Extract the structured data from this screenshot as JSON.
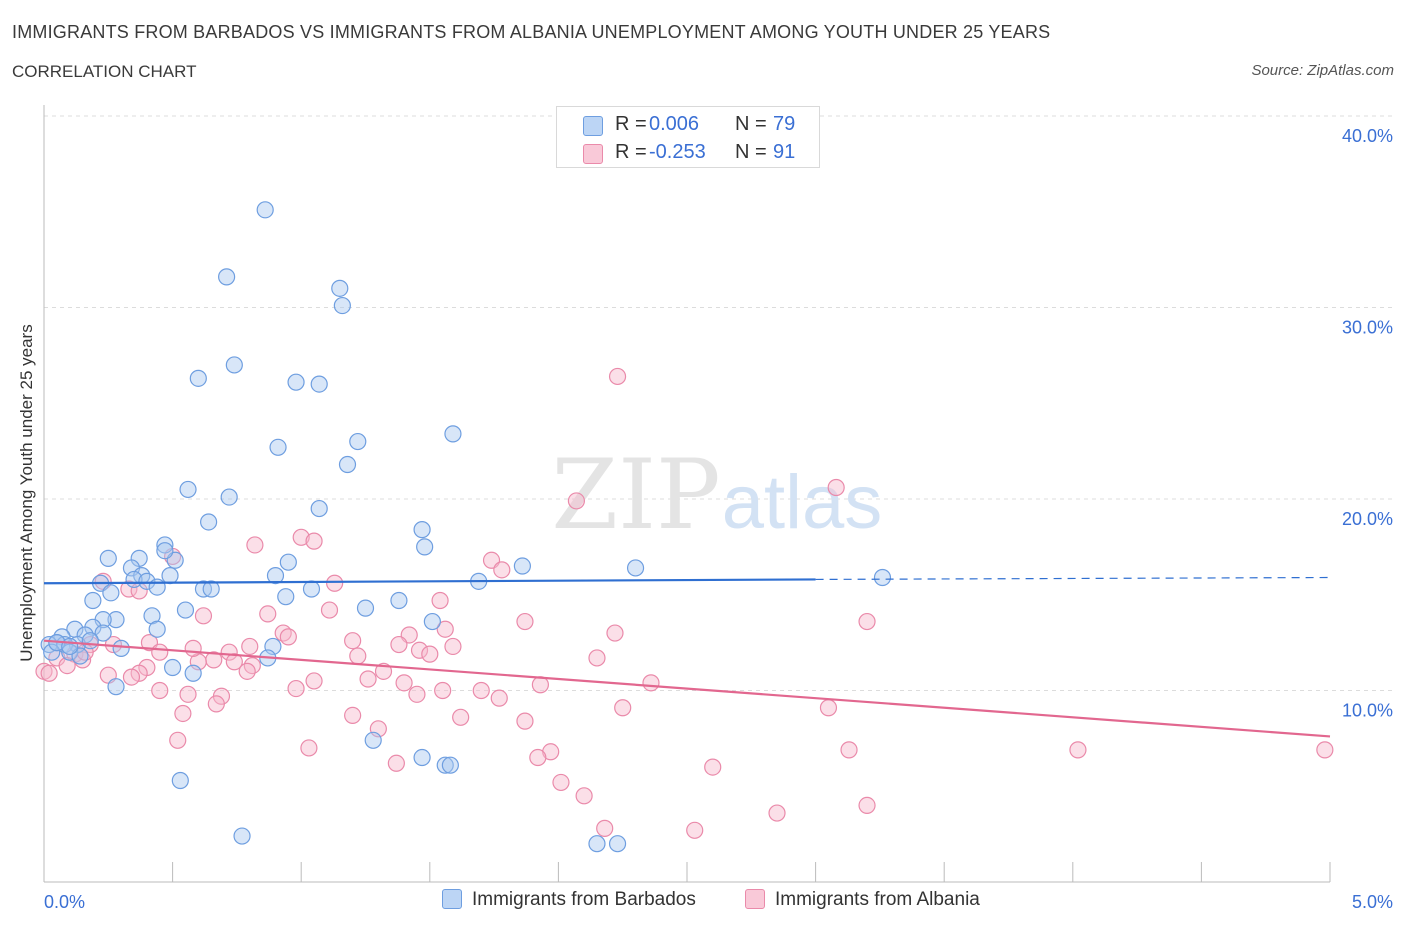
{
  "header": {
    "title": "IMMIGRANTS FROM BARBADOS VS IMMIGRANTS FROM ALBANIA UNEMPLOYMENT AMONG YOUTH UNDER 25 YEARS",
    "subtitle": "CORRELATION CHART",
    "source": "Source: ZipAtlas.com"
  },
  "watermark": {
    "zip": "ZIP",
    "atlas": "atlas"
  },
  "stats_legend": {
    "r_label": "R =",
    "n_label": "N =",
    "rows": [
      {
        "r": "0.006",
        "n": "79"
      },
      {
        "r": "-0.253",
        "n": "91"
      }
    ]
  },
  "colors": {
    "barbados_fill": "#a9c8f0",
    "barbados_stroke": "#6e9ee0",
    "barbados_line": "#2f6fd1",
    "albania_fill": "#f6b8cc",
    "albania_stroke": "#ea8aaa",
    "albania_line": "#e2678f",
    "grid": "#dcdcdc",
    "axis_label": "#3a6fd4"
  },
  "chart_data": {
    "type": "scatter",
    "title": "IMMIGRANTS FROM BARBADOS VS IMMIGRANTS FROM ALBANIA UNEMPLOYMENT AMONG YOUTH UNDER 25 YEARS",
    "xlabel": "",
    "ylabel": "Unemployment Among Youth under 25 years",
    "xlim": [
      0,
      5
    ],
    "ylim": [
      0,
      40
    ],
    "x_tick_labels": [
      "0.0%",
      "5.0%"
    ],
    "y_tick_labels": [
      "10.0%",
      "20.0%",
      "30.0%",
      "40.0%"
    ],
    "y_ticks": [
      10,
      20,
      30,
      40
    ],
    "legend_position": "bottom-center",
    "series": [
      {
        "name": "Immigrants from Barbados",
        "r": 0.006,
        "n": 79,
        "trend": {
          "x0": 0.0,
          "y0": 15.6,
          "x1": 3.0,
          "y1": 15.8,
          "dashed_to_x": 5.0,
          "dashed_to_y": 15.9
        },
        "points": [
          [
            0.86,
            35.1
          ],
          [
            0.71,
            31.6
          ],
          [
            1.15,
            31.0
          ],
          [
            1.16,
            30.1
          ],
          [
            0.74,
            27.0
          ],
          [
            0.6,
            26.3
          ],
          [
            0.98,
            26.1
          ],
          [
            1.07,
            26.0
          ],
          [
            1.59,
            23.4
          ],
          [
            1.22,
            23.0
          ],
          [
            0.91,
            22.7
          ],
          [
            1.18,
            21.8
          ],
          [
            0.56,
            20.5
          ],
          [
            0.72,
            20.1
          ],
          [
            1.07,
            19.5
          ],
          [
            0.64,
            18.8
          ],
          [
            1.47,
            18.4
          ],
          [
            1.48,
            17.5
          ],
          [
            0.47,
            17.6
          ],
          [
            0.25,
            16.9
          ],
          [
            0.37,
            16.9
          ],
          [
            0.51,
            16.8
          ],
          [
            0.95,
            16.7
          ],
          [
            0.47,
            17.3
          ],
          [
            0.34,
            16.4
          ],
          [
            1.86,
            16.5
          ],
          [
            2.3,
            16.4
          ],
          [
            0.9,
            16.0
          ],
          [
            0.38,
            16.0
          ],
          [
            0.49,
            16.0
          ],
          [
            0.35,
            15.8
          ],
          [
            0.22,
            15.6
          ],
          [
            0.4,
            15.7
          ],
          [
            1.69,
            15.7
          ],
          [
            3.26,
            15.9
          ],
          [
            0.62,
            15.3
          ],
          [
            0.65,
            15.3
          ],
          [
            0.26,
            15.1
          ],
          [
            0.44,
            15.4
          ],
          [
            1.04,
            15.3
          ],
          [
            0.94,
            14.9
          ],
          [
            0.19,
            14.7
          ],
          [
            1.38,
            14.7
          ],
          [
            0.55,
            14.2
          ],
          [
            1.25,
            14.3
          ],
          [
            0.42,
            13.9
          ],
          [
            0.28,
            13.7
          ],
          [
            0.23,
            13.7
          ],
          [
            1.51,
            13.6
          ],
          [
            0.19,
            13.3
          ],
          [
            0.12,
            13.2
          ],
          [
            0.23,
            13.0
          ],
          [
            0.16,
            12.9
          ],
          [
            0.44,
            13.2
          ],
          [
            0.07,
            12.8
          ],
          [
            0.05,
            12.5
          ],
          [
            0.02,
            12.4
          ],
          [
            0.13,
            12.4
          ],
          [
            0.18,
            12.6
          ],
          [
            0.08,
            12.4
          ],
          [
            0.89,
            12.3
          ],
          [
            0.3,
            12.2
          ],
          [
            0.1,
            12.0
          ],
          [
            0.03,
            12.0
          ],
          [
            0.14,
            11.8
          ],
          [
            0.87,
            11.7
          ],
          [
            0.5,
            11.2
          ],
          [
            0.58,
            10.9
          ],
          [
            0.28,
            10.2
          ],
          [
            1.28,
            7.4
          ],
          [
            1.47,
            6.5
          ],
          [
            1.56,
            6.1
          ],
          [
            1.58,
            6.1
          ],
          [
            0.53,
            5.3
          ],
          [
            0.77,
            2.4
          ],
          [
            2.15,
            2.0
          ],
          [
            2.23,
            2.0
          ],
          [
            0.05,
            12.5
          ],
          [
            0.1,
            12.3
          ]
        ]
      },
      {
        "name": "Immigrants from Albania",
        "r": -0.253,
        "n": 91,
        "trend": {
          "x0": 0.0,
          "y0": 12.6,
          "x1": 5.0,
          "y1": 7.6
        },
        "points": [
          [
            2.23,
            26.4
          ],
          [
            3.08,
            20.6
          ],
          [
            2.07,
            19.9
          ],
          [
            1.0,
            18.0
          ],
          [
            1.05,
            17.8
          ],
          [
            0.82,
            17.6
          ],
          [
            0.5,
            17.0
          ],
          [
            1.74,
            16.8
          ],
          [
            1.78,
            16.3
          ],
          [
            0.23,
            15.7
          ],
          [
            1.13,
            15.6
          ],
          [
            0.33,
            15.3
          ],
          [
            0.37,
            15.2
          ],
          [
            1.54,
            14.7
          ],
          [
            0.87,
            14.0
          ],
          [
            0.62,
            13.9
          ],
          [
            1.11,
            14.2
          ],
          [
            3.2,
            13.6
          ],
          [
            1.87,
            13.6
          ],
          [
            1.56,
            13.2
          ],
          [
            0.93,
            13.0
          ],
          [
            1.42,
            12.9
          ],
          [
            2.22,
            13.0
          ],
          [
            0.95,
            12.8
          ],
          [
            1.2,
            12.6
          ],
          [
            0.41,
            12.5
          ],
          [
            0.27,
            12.4
          ],
          [
            0.18,
            12.4
          ],
          [
            1.38,
            12.4
          ],
          [
            0.8,
            12.3
          ],
          [
            1.59,
            12.3
          ],
          [
            1.46,
            12.1
          ],
          [
            0.72,
            12.0
          ],
          [
            0.45,
            12.0
          ],
          [
            0.12,
            11.9
          ],
          [
            0.05,
            11.7
          ],
          [
            0.15,
            11.6
          ],
          [
            1.5,
            11.9
          ],
          [
            1.22,
            11.8
          ],
          [
            0.66,
            11.6
          ],
          [
            0.74,
            11.5
          ],
          [
            0.6,
            11.5
          ],
          [
            2.15,
            11.7
          ],
          [
            0.09,
            11.3
          ],
          [
            0.4,
            11.2
          ],
          [
            0.81,
            11.3
          ],
          [
            0.79,
            11.0
          ],
          [
            1.32,
            11.0
          ],
          [
            0.0,
            11.0
          ],
          [
            0.02,
            10.9
          ],
          [
            0.25,
            10.8
          ],
          [
            0.37,
            10.9
          ],
          [
            1.26,
            10.6
          ],
          [
            1.05,
            10.5
          ],
          [
            1.4,
            10.4
          ],
          [
            2.36,
            10.4
          ],
          [
            1.93,
            10.3
          ],
          [
            0.98,
            10.1
          ],
          [
            0.45,
            10.0
          ],
          [
            1.55,
            10.0
          ],
          [
            1.7,
            10.0
          ],
          [
            0.56,
            9.8
          ],
          [
            0.69,
            9.7
          ],
          [
            1.45,
            9.8
          ],
          [
            1.77,
            9.6
          ],
          [
            0.67,
            9.3
          ],
          [
            2.25,
            9.1
          ],
          [
            3.05,
            9.1
          ],
          [
            0.54,
            8.8
          ],
          [
            1.2,
            8.7
          ],
          [
            1.62,
            8.6
          ],
          [
            1.87,
            8.4
          ],
          [
            1.3,
            8.0
          ],
          [
            0.52,
            7.4
          ],
          [
            1.03,
            7.0
          ],
          [
            1.97,
            6.8
          ],
          [
            3.13,
            6.9
          ],
          [
            4.02,
            6.9
          ],
          [
            4.98,
            6.9
          ],
          [
            1.92,
            6.5
          ],
          [
            1.37,
            6.2
          ],
          [
            2.6,
            6.0
          ],
          [
            2.01,
            5.2
          ],
          [
            2.1,
            4.5
          ],
          [
            3.2,
            4.0
          ],
          [
            2.85,
            3.6
          ],
          [
            2.18,
            2.8
          ],
          [
            2.53,
            2.7
          ],
          [
            0.34,
            10.7
          ],
          [
            0.58,
            12.2
          ],
          [
            0.16,
            12.0
          ]
        ]
      }
    ]
  },
  "bottom_legend": {
    "items": [
      {
        "label": "Immigrants from Barbados"
      },
      {
        "label": "Immigrants from Albania"
      }
    ]
  }
}
